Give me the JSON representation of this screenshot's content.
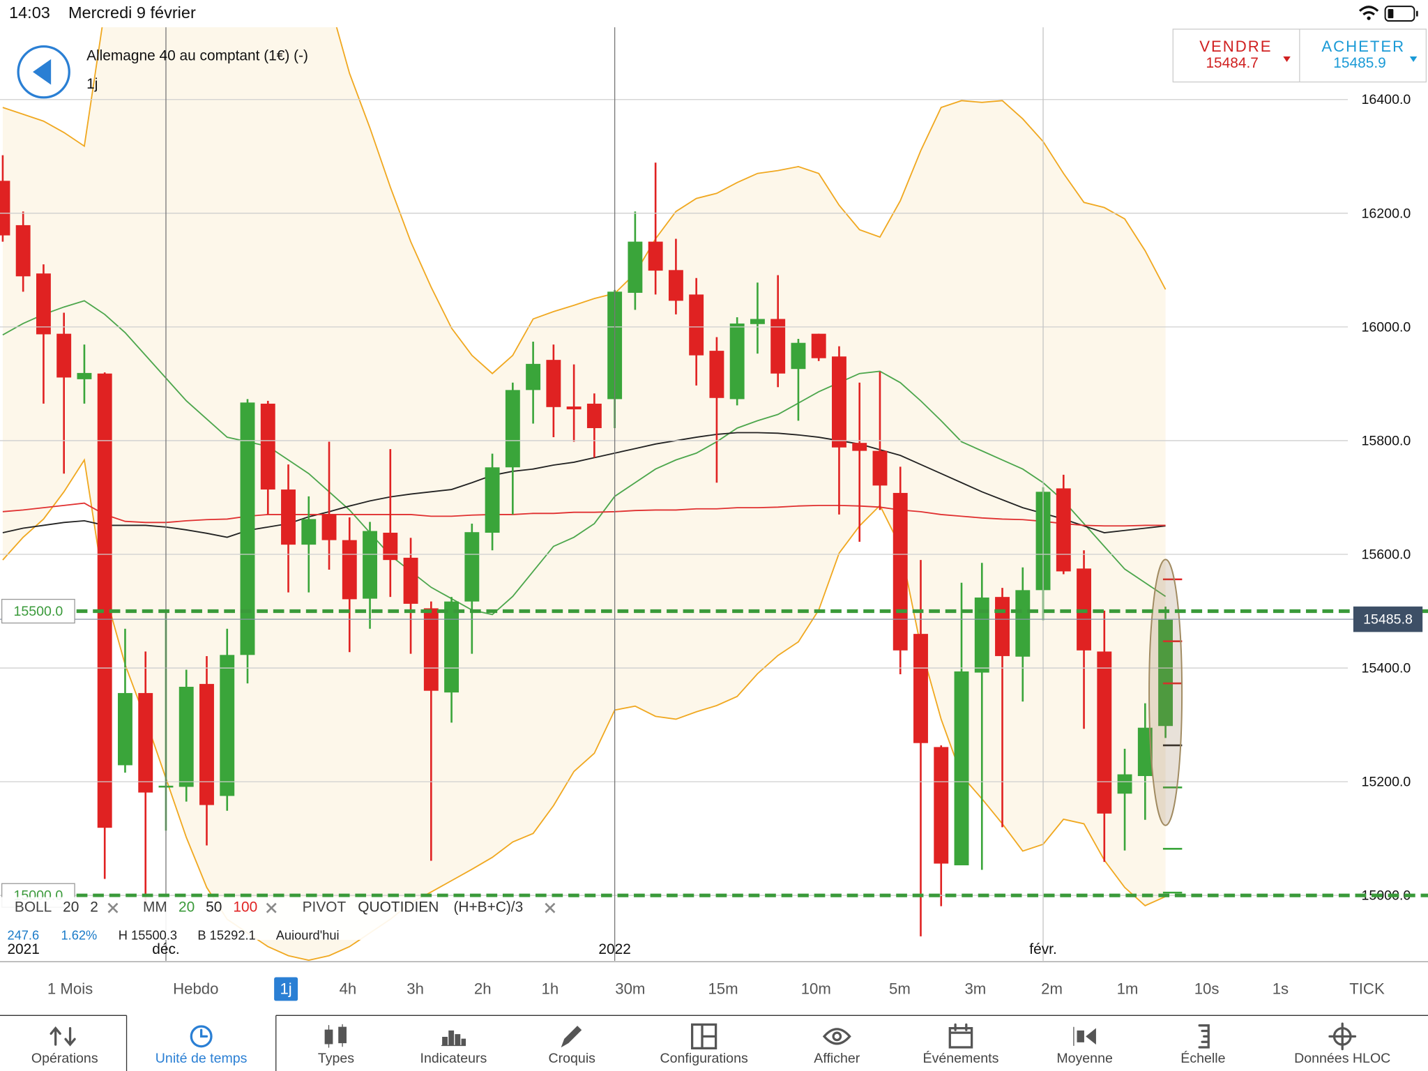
{
  "status_bar": {
    "time": "14:03",
    "date": "Mercredi 9 février"
  },
  "header": {
    "title": "Allemagne 40 au comptant (1€) (-)",
    "timeframe": "1j"
  },
  "quote": {
    "sell_label": "VENDRE",
    "sell_price": "15484.7",
    "buy_label": "ACHETER",
    "buy_price": "15485.9"
  },
  "chart_data": {
    "type": "candlestick",
    "categories": [
      "2021",
      null,
      null,
      null,
      null,
      null,
      null,
      null,
      "déc.",
      null,
      null,
      null,
      null,
      null,
      null,
      null,
      null,
      null,
      null,
      null,
      null,
      null,
      null,
      null,
      null,
      null,
      null,
      null,
      null,
      null,
      "2022",
      null,
      null,
      null,
      null,
      null,
      null,
      null,
      null,
      null,
      null,
      null,
      null,
      null,
      null,
      null,
      null,
      null,
      null,
      null,
      null,
      "févr.",
      null,
      null,
      null,
      null,
      null,
      null
    ],
    "open": [
      16257,
      16179,
      16094,
      15988,
      15908,
      15918,
      15229,
      15356,
      15190,
      15191,
      15372,
      15175,
      15423,
      15865,
      15714,
      15617,
      15670,
      15625,
      15522,
      15638,
      15594,
      15505,
      15357,
      15517,
      15638,
      15753,
      15889,
      15942,
      15860,
      15865,
      15873,
      16060,
      16150,
      16100,
      16057,
      15958,
      15873,
      16005,
      16014,
      15926,
      15988,
      15948,
      15796,
      15782,
      15708,
      15460,
      15261,
      15053,
      15392,
      15525,
      15420,
      15537,
      15716,
      15575,
      15429,
      15179,
      15210,
      15298
    ],
    "high": [
      16302,
      16203,
      16110,
      16025,
      15969,
      15920,
      15469,
      15429,
      15500,
      15397,
      15421,
      15469,
      15873,
      15870,
      15758,
      15702,
      15798,
      15665,
      15657,
      15785,
      15629,
      15517,
      15525,
      15654,
      15777,
      15902,
      15974,
      15969,
      15934,
      15883,
      16065,
      16203,
      16289,
      16155,
      16086,
      15982,
      16017,
      16078,
      16091,
      15979,
      15988,
      15966,
      15902,
      15921,
      15754,
      15590,
      15264,
      15550,
      15585,
      15541,
      15577,
      15718,
      15740,
      15607,
      15501,
      15258,
      15338,
      15508
    ],
    "low": [
      16150,
      16062,
      15865,
      15742,
      15865,
      15029,
      15216,
      14989,
      15114,
      15165,
      15088,
      15149,
      15373,
      15670,
      15533,
      15533,
      15573,
      15428,
      15469,
      15525,
      15425,
      15061,
      15304,
      15425,
      15607,
      15670,
      15830,
      15806,
      15798,
      15770,
      15822,
      16030,
      16057,
      16022,
      15897,
      15726,
      15862,
      15953,
      15894,
      15835,
      15940,
      15670,
      15622,
      15678,
      15389,
      14928,
      14981,
      15053,
      15045,
      15120,
      15341,
      15484,
      15565,
      15293,
      15059,
      15079,
      15133,
      15277
    ],
    "close": [
      16161,
      16089,
      15987,
      15911,
      15919,
      15119,
      15356,
      15181,
      15193,
      15367,
      15159,
      15423,
      15867,
      15714,
      15617,
      15662,
      15625,
      15521,
      15641,
      15590,
      15513,
      15360,
      15517,
      15639,
      15753,
      15889,
      15935,
      15859,
      15855,
      15822,
      16062,
      16150,
      16099,
      16046,
      15950,
      15875,
      16006,
      16014,
      15918,
      15972,
      15945,
      15788,
      15782,
      15721,
      15431,
      15268,
      15056,
      15394,
      15524,
      15421,
      15537,
      15710,
      15570,
      15431,
      15144,
      15213,
      15295,
      15485
    ],
    "up_color": "#3aa53a",
    "down_color": "#e02222",
    "ylim": [
      14885,
      16527
    ],
    "yticks": [
      {
        "value": 16400,
        "label": "16400.0"
      },
      {
        "value": 16200,
        "label": "16200.0"
      },
      {
        "value": 16000,
        "label": "16000.0"
      },
      {
        "value": 15800,
        "label": "15800.0"
      },
      {
        "value": 15600,
        "label": "15600.0"
      },
      {
        "value": 15400,
        "label": "15400.0"
      },
      {
        "value": 15200,
        "label": "15200.0"
      },
      {
        "value": 15000,
        "label": "15000.0"
      }
    ],
    "grid": true,
    "band_fill": "#fdf7ea",
    "overlays": [
      {
        "color": "#f0a820",
        "values": [
          16386,
          16374,
          16362,
          16342,
          16318,
          16558,
          16606,
          16638,
          16662,
          16678,
          16686,
          16694,
          16686,
          16670,
          16646,
          16614,
          16574,
          16446,
          16350,
          16246,
          16150,
          16070,
          15998,
          15950,
          15918,
          15950,
          16014,
          16027,
          16038,
          16050,
          16059,
          16094,
          16155,
          16203,
          16226,
          16235,
          16254,
          16270,
          16275,
          16282,
          16270,
          16214,
          16171,
          16158,
          16222,
          16310,
          16386,
          16398,
          16395,
          16398,
          16366,
          16326,
          16270,
          16219,
          16210,
          16190,
          16134,
          16066
        ]
      },
      {
        "color": "#f0a820",
        "values": [
          15590,
          15630,
          15662,
          15710,
          15766,
          15534,
          15406,
          15310,
          15206,
          15102,
          15014,
          14958,
          14934,
          14910,
          14894,
          14886,
          14894,
          14910,
          14934,
          14958,
          14987,
          15006,
          15026,
          15046,
          15067,
          15094,
          15109,
          15158,
          15218,
          15250,
          15326,
          15333,
          15315,
          15310,
          15323,
          15334,
          15350,
          15390,
          15422,
          15446,
          15502,
          15602,
          15650,
          15686,
          15614,
          15438,
          15310,
          15211,
          15170,
          15126,
          15078,
          15090,
          15134,
          15126,
          15062,
          15014,
          14982,
          14998
        ]
      },
      {
        "color": "#4ca64c",
        "values": [
          15986,
          16006,
          16022,
          16035,
          16046,
          16022,
          15990,
          15950,
          15910,
          15870,
          15838,
          15806,
          15798,
          15790,
          15766,
          15742,
          15710,
          15678,
          15638,
          15598,
          15570,
          15542,
          15522,
          15502,
          15494,
          15526,
          15570,
          15614,
          15630,
          15654,
          15702,
          15726,
          15750,
          15766,
          15778,
          15798,
          15822,
          15835,
          15846,
          15866,
          15886,
          15902,
          15918,
          15922,
          15902,
          15870,
          15835,
          15798,
          15782,
          15766,
          15750,
          15726,
          15694,
          15654,
          15614,
          15574,
          15550,
          15526
        ]
      },
      {
        "color": "#222222",
        "values": [
          15638,
          15646,
          15651,
          15656,
          15659,
          15651,
          15651,
          15651,
          15648,
          15643,
          15637,
          15630,
          15642,
          15648,
          15654,
          15666,
          15675,
          15685,
          15694,
          15701,
          15706,
          15710,
          15714,
          15726,
          15739,
          15746,
          15750,
          15757,
          15762,
          15770,
          15778,
          15786,
          15794,
          15800,
          15806,
          15811,
          15814,
          15814,
          15813,
          15810,
          15806,
          15800,
          15794,
          15784,
          15774,
          15758,
          15742,
          15726,
          15710,
          15696,
          15682,
          15672,
          15662,
          15650,
          15638,
          15642,
          15646,
          15650
        ]
      },
      {
        "color": "#e03030",
        "values": [
          15675,
          15678,
          15682,
          15686,
          15690,
          15670,
          15658,
          15656,
          15656,
          15659,
          15661,
          15662,
          15667,
          15670,
          15670,
          15670,
          15670,
          15670,
          15670,
          15670,
          15670,
          15667,
          15667,
          15669,
          15670,
          15670,
          15672,
          15672,
          15674,
          15674,
          15675,
          15677,
          15678,
          15678,
          15680,
          15680,
          15682,
          15682,
          15683,
          15685,
          15686,
          15686,
          15685,
          15683,
          15678,
          15675,
          15670,
          15667,
          15664,
          15662,
          15661,
          15658,
          15654,
          15651,
          15650,
          15650,
          15651,
          15651
        ]
      }
    ],
    "levels": [
      {
        "value": 15500,
        "label": "15500.0",
        "color": "#3a9a3a"
      },
      {
        "value": 15000,
        "label": "15000.0",
        "color": "#3a9a3a"
      }
    ],
    "current_price": {
      "value": 15485.8,
      "label": "15485.8"
    },
    "pivots": {
      "values": [
        15556,
        15447,
        15373,
        15264,
        15190,
        15082,
        15005
      ],
      "colors": [
        "#e02222",
        "#e02222",
        "#e02222",
        "#222222",
        "#3aa53a",
        "#3aa53a",
        "#3aa53a"
      ]
    }
  },
  "indicators": [
    {
      "name": "BOLL",
      "params": [
        {
          "text": "20",
          "color": "#333333"
        },
        {
          "text": "2",
          "color": "#333333"
        }
      ]
    },
    {
      "name": "MM",
      "params": [
        {
          "text": "20",
          "color": "#3a9a3a"
        },
        {
          "text": "50",
          "color": "#222222"
        },
        {
          "text": "100",
          "color": "#e02222"
        }
      ]
    },
    {
      "name": "PIVOT",
      "params": [
        {
          "text": "QUOTIDIEN",
          "color": "#333333"
        },
        {
          "text": "(H+B+C)/3",
          "color": "#333333"
        }
      ]
    }
  ],
  "stats": [
    "247.6",
    "1.62%",
    "H 15500.3",
    "B 15292.1",
    "Aujourd'hui"
  ],
  "timeframes": {
    "items": [
      "1 Mois",
      "Hebdo",
      "1j",
      "4h",
      "3h",
      "2h",
      "1h",
      "30m",
      "15m",
      "10m",
      "5m",
      "3m",
      "2m",
      "1m",
      "10s",
      "1s",
      "TICK"
    ],
    "selected": 2
  },
  "toolbar": {
    "items": [
      "Opérations",
      "Unité de temps",
      "Types",
      "Indicateurs",
      "Croquis",
      "Configurations",
      "Afficher",
      "Événements",
      "Moyenne",
      "Échelle",
      "Données HLOC"
    ],
    "selected": 1
  }
}
